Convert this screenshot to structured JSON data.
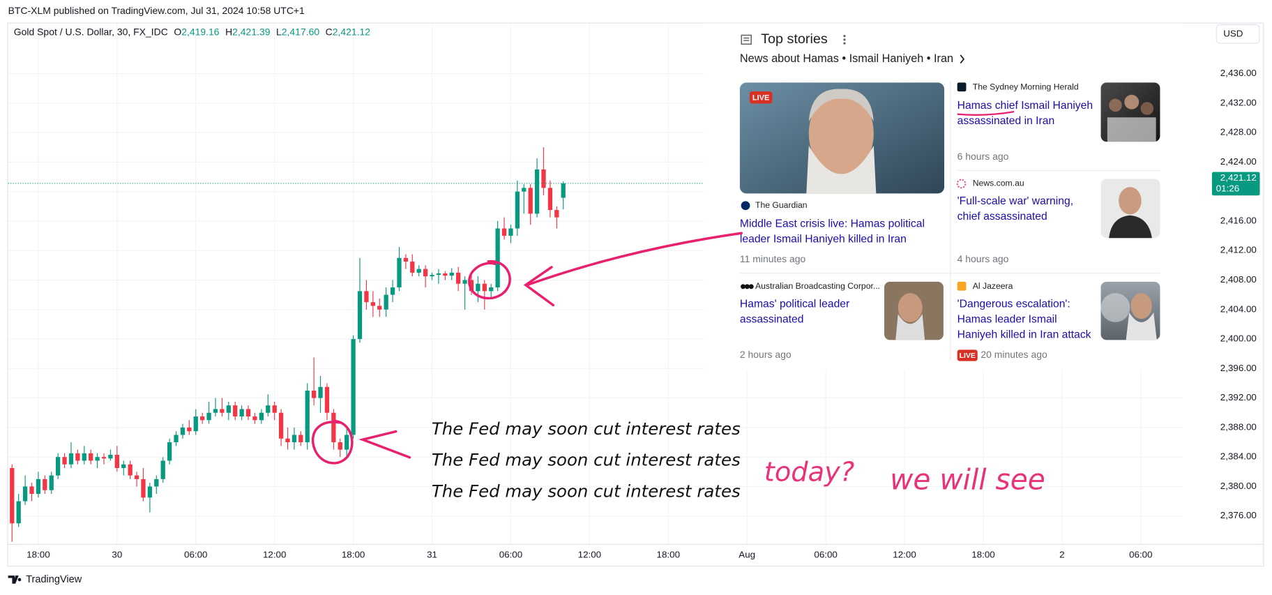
{
  "header": {
    "text": "BTC-XLM published on TradingView.com, Jul 31, 2024 10:58 UTC+1"
  },
  "chart_data": {
    "type": "candlestick",
    "title": "Gold Spot / U.S. Dollar, 30, FX_IDC",
    "ohlc_labels": [
      {
        "key": "O",
        "label": "2,419.16"
      },
      {
        "key": "H",
        "label": "2,421.39"
      },
      {
        "key": "L",
        "label": "2,417.60"
      },
      {
        "key": "C",
        "label": "2,421.12"
      }
    ],
    "up_color": "#089981",
    "down_color": "#f23645",
    "grid": true,
    "currency": "USD",
    "last_price_label": "2,421.12",
    "countdown": "01:26",
    "x": [
      16,
      16.5,
      17,
      17.5,
      18,
      18.5,
      19,
      19.5,
      20,
      20.5,
      21,
      21.5,
      22,
      22.5,
      23,
      23.5,
      24,
      24.5,
      25,
      25.5,
      26,
      26.5,
      27,
      27.5,
      28,
      28.5,
      29,
      29.5,
      30,
      30.5,
      31,
      31.5,
      32,
      32.5,
      33,
      33.5,
      34,
      34.5,
      35,
      35.5,
      36,
      36.5,
      37,
      37.5,
      38,
      38.5,
      39,
      39.5,
      40,
      40.5,
      41,
      41.5,
      42,
      42.5,
      43,
      43.5,
      44,
      44.5,
      45,
      45.5,
      46,
      46.5,
      47,
      47.5,
      48,
      48.5,
      49,
      49.5,
      50,
      50.5,
      51,
      51.5,
      52,
      52.5,
      53,
      53.5,
      54,
      54.5,
      55,
      55.5,
      56,
      56.5,
      57,
      57.5,
      58
    ],
    "open": [
      2382.5,
      2375,
      2378,
      2380,
      2379,
      2381,
      2379.5,
      2381.5,
      2384,
      2383,
      2384.5,
      2383.5,
      2384.5,
      2383.5,
      2384,
      2383.8,
      2384.3,
      2382.5,
      2383,
      2381.5,
      2381,
      2378.5,
      2380,
      2381,
      2383.5,
      2386,
      2387,
      2388,
      2387.5,
      2389.5,
      2389,
      2390,
      2390.5,
      2390,
      2391,
      2389.5,
      2390.5,
      2389.5,
      2389,
      2390,
      2391,
      2390,
      2386.5,
      2386,
      2387,
      2386,
      2393,
      2392,
      2393.5,
      2390,
      2386,
      2385,
      2387,
      2400,
      2406.5,
      2405,
      2404.5,
      2404,
      2406,
      2407,
      2411,
      2410.5,
      2409,
      2409.5,
      2408.5,
      2408.7,
      2408.9,
      2408.6,
      2409,
      2407.5,
      2408,
      2406.5,
      2407.5,
      2406.5,
      2407,
      2415,
      2414,
      2415,
      2420,
      2420.5,
      2417,
      2423,
      2420.5,
      2417.5,
      2419.16
    ],
    "high": [
      2383,
      2379,
      2381.5,
      2380.5,
      2382,
      2381.5,
      2382,
      2384.5,
      2384.5,
      2386,
      2385,
      2385.5,
      2385,
      2384.5,
      2384.5,
      2385,
      2385.5,
      2383.5,
      2383.5,
      2382,
      2382.5,
      2380.5,
      2381.5,
      2384,
      2386.5,
      2387.5,
      2388.5,
      2389,
      2390.5,
      2390,
      2391.5,
      2392,
      2392,
      2391.5,
      2391.5,
      2391,
      2391,
      2390,
      2390.5,
      2392.5,
      2391.5,
      2390.5,
      2388,
      2388,
      2387.5,
      2394,
      2397.5,
      2395,
      2394,
      2390.5,
      2386.5,
      2388,
      2400.5,
      2411,
      2408,
      2406.5,
      2405.5,
      2407,
      2408,
      2412.5,
      2411.5,
      2411.5,
      2410,
      2410,
      2409,
      2409.5,
      2409.2,
      2409.6,
      2409.8,
      2408.5,
      2409,
      2408.5,
      2408,
      2407.5,
      2416,
      2416.5,
      2415.5,
      2421.5,
      2421,
      2421,
      2424.5,
      2426,
      2421.5,
      2418,
      2421.39
    ],
    "low": [
      2372.5,
      2374.5,
      2377.5,
      2378,
      2378.5,
      2379,
      2379,
      2381,
      2382.5,
      2382.5,
      2383,
      2383,
      2383,
      2382.5,
      2383,
      2383.5,
      2382,
      2381.5,
      2381,
      2380,
      2378,
      2376.5,
      2379,
      2380.5,
      2383,
      2385.5,
      2386.5,
      2387,
      2387,
      2388.5,
      2388.5,
      2389.5,
      2389.5,
      2389,
      2389,
      2389,
      2389,
      2388.5,
      2388.5,
      2389.5,
      2389,
      2385.5,
      2385,
      2385,
      2385.5,
      2385,
      2391,
      2390,
      2389,
      2385,
      2384,
      2384,
      2386.5,
      2399.5,
      2404,
      2403,
      2403,
      2403,
      2405,
      2406.5,
      2409.5,
      2408.5,
      2408.5,
      2407,
      2408,
      2407.5,
      2408,
      2408,
      2406.5,
      2404,
      2406,
      2405,
      2404,
      2405.5,
      2406.5,
      2413.5,
      2413,
      2414,
      2417,
      2415.5,
      2416.5,
      2419.5,
      2416.5,
      2415,
      2417.6
    ],
    "close": [
      2375,
      2378,
      2380,
      2379,
      2381,
      2379.5,
      2381.5,
      2384,
      2383,
      2384.5,
      2383.5,
      2384.5,
      2383.5,
      2384,
      2383.8,
      2384.3,
      2382.5,
      2383,
      2381.5,
      2381,
      2378.5,
      2380,
      2381,
      2383.5,
      2386,
      2387,
      2388,
      2387.5,
      2389.5,
      2389,
      2390,
      2390.5,
      2390,
      2391,
      2389.5,
      2390.5,
      2389.5,
      2389,
      2390,
      2391,
      2390,
      2386.5,
      2386,
      2387,
      2386,
      2393,
      2392,
      2393.5,
      2390,
      2386,
      2385,
      2387,
      2400,
      2406.5,
      2405,
      2404.5,
      2404,
      2406,
      2407,
      2411,
      2410.5,
      2409,
      2409.5,
      2408.5,
      2408.7,
      2408.9,
      2408.6,
      2409,
      2407.5,
      2408,
      2406.5,
      2407.5,
      2406.5,
      2407,
      2415,
      2414,
      2415,
      2420,
      2420.5,
      2417,
      2423,
      2420.5,
      2417.5,
      2416.5,
      2421.12
    ],
    "xlim": [
      15.7,
      105.2
    ],
    "xticks": [
      {
        "value": 18,
        "label": "18:00"
      },
      {
        "value": 24,
        "label": "30"
      },
      {
        "value": 30,
        "label": "06:00"
      },
      {
        "value": 36,
        "label": "12:00"
      },
      {
        "value": 42,
        "label": "18:00"
      },
      {
        "value": 48,
        "label": "31"
      },
      {
        "value": 54,
        "label": "06:00"
      },
      {
        "value": 60,
        "label": "12:00"
      },
      {
        "value": 66,
        "label": "18:00"
      },
      {
        "value": 72,
        "label": "Aug"
      },
      {
        "value": 78,
        "label": "06:00"
      },
      {
        "value": 84,
        "label": "12:00"
      },
      {
        "value": 90,
        "label": "18:00"
      },
      {
        "value": 96,
        "label": "2"
      },
      {
        "value": 102,
        "label": "06:00"
      }
    ],
    "ylim": [
      2372.2,
      2442.8
    ],
    "yticks": [
      {
        "value": 2376,
        "label": "2,376.00"
      },
      {
        "value": 2380,
        "label": "2,380.00"
      },
      {
        "value": 2384,
        "label": "2,384.00"
      },
      {
        "value": 2388,
        "label": "2,388.00"
      },
      {
        "value": 2392,
        "label": "2,392.00"
      },
      {
        "value": 2396,
        "label": "2,396.00"
      },
      {
        "value": 2400,
        "label": "2,400.00"
      },
      {
        "value": 2404,
        "label": "2,404.00"
      },
      {
        "value": 2408,
        "label": "2,408.00"
      },
      {
        "value": 2412,
        "label": "2,412.00"
      },
      {
        "value": 2416,
        "label": "2,416.00"
      },
      {
        "value": 2420,
        "label": "2,420.00"
      },
      {
        "value": 2424,
        "label": "2,424.00"
      },
      {
        "value": 2428,
        "label": "2,428.00"
      },
      {
        "value": 2432,
        "label": "2,432.00"
      },
      {
        "value": 2436,
        "label": "2,436.00"
      }
    ],
    "annotations": [
      "The Fed may soon cut interest rates",
      "The Fed may soon cut interest rates",
      "The Fed may soon cut interest rates",
      "today?",
      "we will see"
    ]
  },
  "news": {
    "title": "Top stories",
    "subtitle": "News about Hamas • Ismail Haniyeh • Iran",
    "stories": [
      {
        "badge": "LIVE",
        "source": "The Guardian",
        "headline": [
          "Middle East crisis live: Hamas political",
          "leader Ismail Haniyeh killed in Iran"
        ],
        "time": "11 minutes ago"
      },
      {
        "source": "The Sydney Morning Herald",
        "headline": [
          "Hamas chief Ismail Haniyeh",
          "assassinated in Iran"
        ],
        "time": "6 hours ago"
      },
      {
        "source": "News.com.au",
        "headline": [
          "'Full-scale war' warning,",
          "chief assassinated"
        ],
        "time": "4 hours ago"
      },
      {
        "source": "Australian Broadcasting Corpor...",
        "headline": [
          "Hamas' political leader",
          "assassinated"
        ],
        "time": "2 hours ago"
      },
      {
        "source": "Al Jazeera",
        "headline": [
          "'Dangerous escalation':",
          "Hamas leader Ismail",
          "Haniyeh killed in Iran attack"
        ],
        "badge": "LIVE",
        "time": "20 minutes ago"
      }
    ]
  },
  "footer": {
    "brand": "TradingView"
  }
}
